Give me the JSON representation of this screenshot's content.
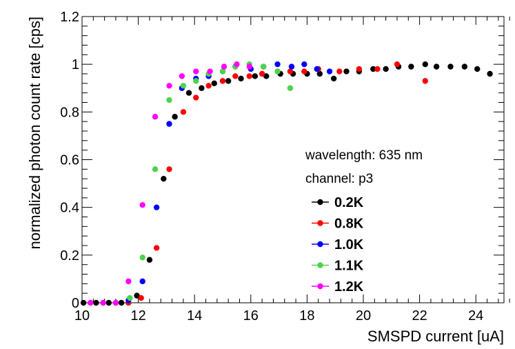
{
  "chart_data": {
    "type": "scatter",
    "title": "",
    "xlabel": "SMSPD current [uA]",
    "ylabel": "normalized photon count rate [cps]",
    "xlim": [
      10,
      25
    ],
    "ylim": [
      0,
      1.2
    ],
    "x_ticks": [
      10,
      12,
      14,
      16,
      18,
      20,
      22,
      24
    ],
    "y_ticks": [
      0,
      0.2,
      0.4,
      0.6,
      0.8,
      1,
      1.2
    ],
    "y_tick_labels": [
      "0",
      "0.2",
      "0.4",
      "0.6",
      "0.8",
      "1",
      "1.2"
    ],
    "grid": false,
    "annotations": [
      "wavelength: 635 nm",
      "channel: p3"
    ],
    "legend_position": "lower-right",
    "series": [
      {
        "name": "0.2K",
        "color": "#000000",
        "points": [
          [
            10.05,
            0.0
          ],
          [
            10.5,
            0.0
          ],
          [
            10.95,
            0.0
          ],
          [
            11.4,
            0.0
          ],
          [
            11.95,
            0.03
          ],
          [
            12.4,
            0.18
          ],
          [
            12.9,
            0.52
          ],
          [
            13.3,
            0.78
          ],
          [
            13.8,
            0.88
          ],
          [
            14.25,
            0.9
          ],
          [
            14.7,
            0.92
          ],
          [
            15.2,
            0.93
          ],
          [
            15.65,
            0.94
          ],
          [
            16.15,
            0.95
          ],
          [
            16.55,
            0.95
          ],
          [
            17.05,
            0.96
          ],
          [
            17.5,
            0.96
          ],
          [
            18.0,
            0.96
          ],
          [
            18.45,
            0.96
          ],
          [
            18.95,
            0.94
          ],
          [
            19.4,
            0.97
          ],
          [
            19.85,
            0.97
          ],
          [
            20.35,
            0.98
          ],
          [
            20.8,
            0.98
          ],
          [
            21.25,
            0.99
          ],
          [
            21.7,
            0.99
          ],
          [
            22.2,
            1.0
          ],
          [
            22.6,
            0.99
          ],
          [
            23.1,
            0.99
          ],
          [
            23.6,
            0.99
          ],
          [
            24.05,
            0.98
          ],
          [
            24.5,
            0.96
          ]
        ]
      },
      {
        "name": "0.8K",
        "color": "#ff0000",
        "points": [
          [
            11.2,
            0.0
          ],
          [
            11.65,
            0.0
          ],
          [
            12.1,
            0.02
          ],
          [
            12.65,
            0.23
          ],
          [
            13.1,
            0.56
          ],
          [
            13.6,
            0.8
          ],
          [
            14.05,
            0.86
          ],
          [
            14.5,
            0.91
          ],
          [
            15.0,
            0.93
          ],
          [
            15.45,
            0.95
          ],
          [
            15.95,
            0.95
          ],
          [
            16.4,
            0.96
          ],
          [
            16.95,
            0.97
          ],
          [
            17.4,
            0.97
          ],
          [
            17.9,
            0.97
          ],
          [
            18.4,
            0.98
          ],
          [
            19.15,
            0.97
          ],
          [
            19.85,
            0.98
          ],
          [
            20.5,
            0.98
          ],
          [
            21.2,
            1.0
          ],
          [
            22.2,
            0.93
          ]
        ]
      },
      {
        "name": "1.0K",
        "color": "#0000ff",
        "points": [
          [
            11.65,
            0.01
          ],
          [
            12.15,
            0.09
          ],
          [
            12.65,
            0.4
          ],
          [
            13.1,
            0.75
          ],
          [
            13.55,
            0.9
          ],
          [
            14.05,
            0.94
          ],
          [
            14.5,
            0.95
          ],
          [
            15.0,
            0.97
          ],
          [
            15.45,
            0.99
          ],
          [
            16.0,
            0.98
          ],
          [
            16.45,
            0.99
          ],
          [
            16.95,
            1.0
          ],
          [
            17.45,
            0.99
          ],
          [
            17.9,
            1.0
          ],
          [
            18.35,
            0.98
          ],
          [
            18.8,
            0.97
          ]
        ]
      },
      {
        "name": "1.1K",
        "color": "#4cd24c",
        "points": [
          [
            11.7,
            0.02
          ],
          [
            12.15,
            0.19
          ],
          [
            12.6,
            0.56
          ],
          [
            13.1,
            0.85
          ],
          [
            13.6,
            0.91
          ],
          [
            14.05,
            0.93
          ],
          [
            14.5,
            0.96
          ],
          [
            15.0,
            0.97
          ],
          [
            15.45,
            0.99
          ],
          [
            15.95,
            1.0
          ],
          [
            16.45,
            0.99
          ],
          [
            16.95,
            0.97
          ],
          [
            17.4,
            0.9
          ]
        ]
      },
      {
        "name": "1.2K",
        "color": "#ff00ff",
        "points": [
          [
            10.3,
            0.0
          ],
          [
            10.75,
            0.0
          ],
          [
            11.2,
            0.0
          ],
          [
            11.65,
            0.09
          ],
          [
            12.15,
            0.41
          ],
          [
            12.6,
            0.78
          ],
          [
            13.1,
            0.91
          ],
          [
            13.55,
            0.95
          ],
          [
            14.05,
            0.97
          ],
          [
            14.55,
            0.97
          ],
          [
            15.05,
            0.99
          ],
          [
            15.5,
            1.0
          ],
          [
            15.95,
            0.99
          ]
        ]
      }
    ]
  }
}
